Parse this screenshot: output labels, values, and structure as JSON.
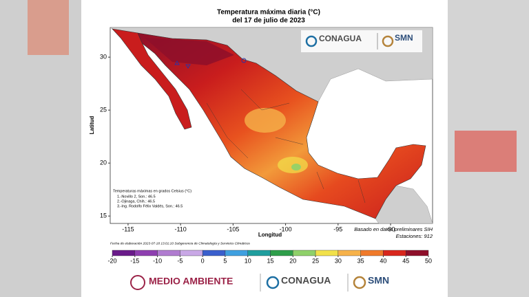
{
  "title": "Temperatura máxima diaria (°C)",
  "subtitle": "del 17 de julio de 2023",
  "map": {
    "x_label": "Longitud",
    "y_label": "Latitud",
    "xlim": [
      -116.7,
      -86
    ],
    "ylim": [
      14.3,
      32.8
    ],
    "xticks": [
      -115,
      -110,
      -105,
      -100,
      -95,
      -90
    ],
    "yticks": [
      15,
      20,
      25,
      30
    ]
  },
  "legend": {
    "title": "Temperaturas máximas en grados Celsius (°C)",
    "items": [
      "1.-Novillo 2, Son.: 46.5",
      "2.-Ojinaga, Chih.: 46.5",
      "3.-Ing. Rodolfo Félix Valdés, Son.: 46.5"
    ]
  },
  "note": "Basado en datos preliminares SIH",
  "stations": "Estaciones: 912",
  "footnote": "Fecha de elaboración 2023-07-18 13:01:10 Subgerencia de Climatología y Servicios Climáticos",
  "colorbar": {
    "ticks": [
      -20,
      -15,
      -10,
      -5,
      0,
      5,
      10,
      15,
      20,
      25,
      30,
      35,
      40,
      45,
      50
    ],
    "colors": [
      "#6a1b8a",
      "#8e3fb0",
      "#b07cd0",
      "#c9a8e6",
      "#3a5fcd",
      "#3fa0e0",
      "#1f9e9e",
      "#2e9e4a",
      "#8fd16a",
      "#f2e14a",
      "#f7b24a",
      "#f07a2a",
      "#d8261c",
      "#8e0f2a"
    ]
  },
  "logos": {
    "conagua": "CONAGUA",
    "smn": "SMN",
    "medio_ambiente": "MEDIO AMBIENTE"
  }
}
